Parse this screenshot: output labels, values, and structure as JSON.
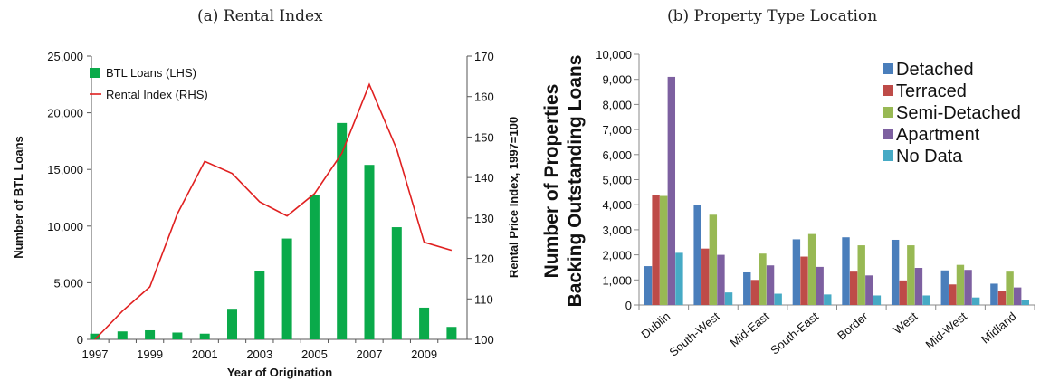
{
  "chart_data": [
    {
      "type": "bar",
      "title": "(a) Rental Index",
      "xlabel": "Year of Origination",
      "ylabel": "Number of BTL Loans",
      "ylabel_right": "Rental Price Index, 1997=100",
      "categories": [
        "1997",
        "1998",
        "1999",
        "2000",
        "2001",
        "2002",
        "2003",
        "2004",
        "2005",
        "2006",
        "2007",
        "2008",
        "2009",
        "2010"
      ],
      "x_tick_labels": [
        "1997",
        "",
        "1999",
        "",
        "2001",
        "",
        "2003",
        "",
        "2005",
        "",
        "2007",
        "",
        "2009",
        ""
      ],
      "ylim": [
        0,
        25000
      ],
      "yticks": [
        "0",
        "5,000",
        "10,000",
        "15,000",
        "20,000",
        "25,000"
      ],
      "y2lim": [
        100,
        170
      ],
      "y2ticks": [
        "100",
        "110",
        "120",
        "130",
        "140",
        "150",
        "160",
        "170"
      ],
      "series": [
        {
          "name": "BTL Loans (LHS)",
          "kind": "bar",
          "axis": "left",
          "color": "#0aaa4a",
          "values": [
            500,
            700,
            800,
            600,
            500,
            2700,
            6000,
            8900,
            12700,
            19100,
            15400,
            9900,
            2800,
            1100
          ]
        },
        {
          "name": "Rental Index (RHS)",
          "kind": "line",
          "axis": "right",
          "color": "#e02020",
          "values": [
            100,
            107,
            113,
            131,
            144,
            141,
            134,
            130.5,
            136,
            146,
            163,
            147,
            124,
            122
          ]
        }
      ],
      "legend_position": "top-left",
      "grid": false
    },
    {
      "type": "bar",
      "title": "(b) Property Type Location",
      "xlabel": "",
      "ylabel_line1": "Number of Properties",
      "ylabel_line2": "Backing Outstanding Loans",
      "categories": [
        "Dublin",
        "South-West",
        "Mid-East",
        "South-East",
        "Border",
        "West",
        "Mid-West",
        "Midland"
      ],
      "ylim": [
        0,
        10000
      ],
      "yticks": [
        "0",
        "1,000",
        "2,000",
        "3,000",
        "4,000",
        "5,000",
        "6,000",
        "7,000",
        "8,000",
        "9,000",
        "10,000"
      ],
      "series": [
        {
          "name": "Detached",
          "color": "#4a7ebb",
          "values": [
            1550,
            4000,
            1300,
            2620,
            2700,
            2600,
            1380,
            850
          ]
        },
        {
          "name": "Terraced",
          "color": "#be4b48",
          "values": [
            4400,
            2250,
            1000,
            1930,
            1330,
            980,
            820,
            570
          ]
        },
        {
          "name": "Semi-Detached",
          "color": "#98b954",
          "values": [
            4350,
            3600,
            2050,
            2830,
            2380,
            2380,
            1600,
            1330
          ]
        },
        {
          "name": "Apartment",
          "color": "#7d60a0",
          "values": [
            9100,
            2000,
            1580,
            1520,
            1180,
            1480,
            1400,
            700
          ]
        },
        {
          "name": "No Data",
          "color": "#46aac5",
          "values": [
            2080,
            500,
            450,
            420,
            380,
            380,
            300,
            200
          ]
        }
      ],
      "legend_position": "top-right",
      "grid": false
    }
  ]
}
